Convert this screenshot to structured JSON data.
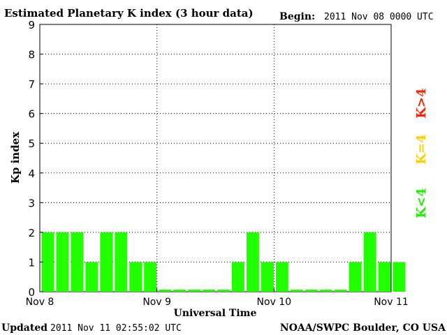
{
  "chart_data": {
    "type": "bar",
    "title": "Estimated Planetary K index (3 hour data)",
    "begin_label": "Begin:",
    "begin_value": "2011 Nov 08 0000 UTC",
    "ylabel": "Kp index",
    "xlabel": "Universal Time",
    "ylim": [
      0,
      9
    ],
    "yticks": [
      "0",
      "1",
      "2",
      "3",
      "4",
      "5",
      "6",
      "7",
      "8",
      "9"
    ],
    "xtick_labels": [
      "Nov 8",
      "Nov 9",
      "Nov 10",
      "Nov 11"
    ],
    "grid": "dotted-at-day-boundaries-and-integer-kp",
    "bar_color": "#22ff00",
    "values": [
      2,
      2,
      2,
      1,
      2,
      2,
      1,
      1,
      0,
      0,
      0,
      0,
      0,
      1,
      2,
      1,
      1,
      0,
      0,
      0,
      0,
      1,
      2,
      1,
      1
    ],
    "legend": [
      {
        "label": "K<4",
        "color": "#22ee00"
      },
      {
        "label": "K=4",
        "color": "#ffcc00"
      },
      {
        "label": "K>4",
        "color": "#ff2200"
      }
    ]
  },
  "footer": {
    "updated_label": "Updated",
    "updated_value": "2011 Nov 11 02:55:02 UTC",
    "source": "NOAA/SWPC Boulder, CO USA"
  }
}
